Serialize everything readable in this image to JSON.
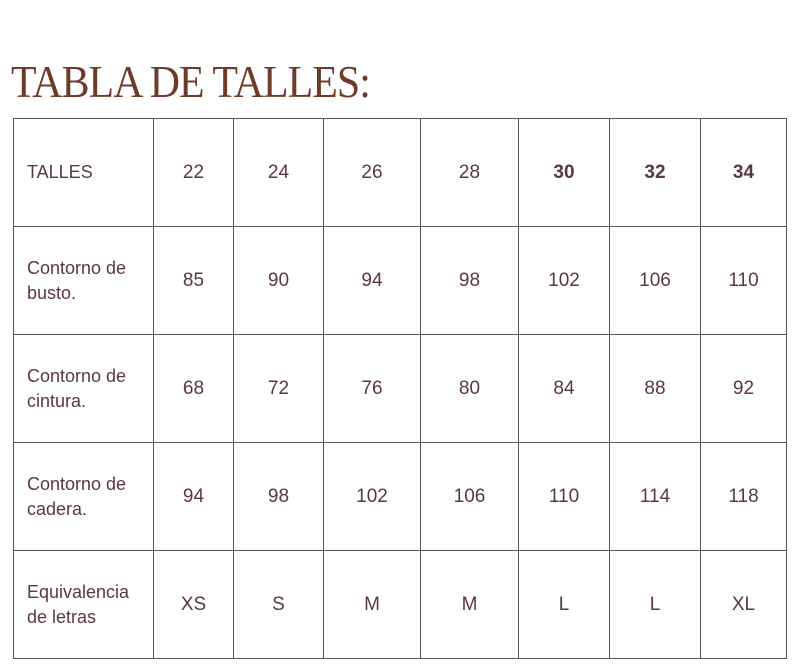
{
  "title": "TABLA DE TALLES:",
  "colors": {
    "title": "#6e3b2a",
    "text": "#5a3744",
    "border": "#555555"
  },
  "table": {
    "header": {
      "label": "TALLES",
      "values": [
        "22",
        "24",
        "26",
        "28",
        "30",
        "32",
        "34"
      ]
    },
    "rows": [
      {
        "label": "Contorno de busto.",
        "values": [
          "85",
          "90",
          "94",
          "98",
          "102",
          "106",
          "110"
        ]
      },
      {
        "label": "Contorno de cintura.",
        "values": [
          "68",
          "72",
          "76",
          "80",
          "84",
          "88",
          "92"
        ]
      },
      {
        "label": "Contorno de cadera.",
        "values": [
          "94",
          "98",
          "102",
          "106",
          "110",
          "114",
          "118"
        ]
      },
      {
        "label": "Equivalencia de letras",
        "values": [
          "XS",
          "S",
          "M",
          "M",
          "L",
          "L",
          "XL"
        ]
      }
    ]
  }
}
